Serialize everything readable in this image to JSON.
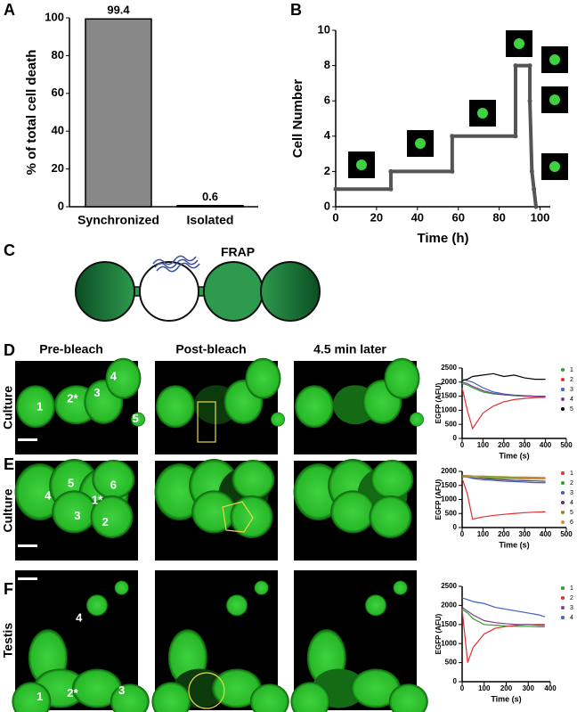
{
  "panels": {
    "letters": [
      "A",
      "B",
      "C",
      "D",
      "E",
      "F"
    ],
    "frap": "FRAP",
    "column_headers": [
      "Pre-bleach",
      "Post-bleach",
      "4.5 min later"
    ],
    "rows": [
      {
        "row_label": "Culture",
        "cells": [
          "1",
          "2*",
          "3",
          "4",
          "5"
        ]
      },
      {
        "row_label": "Culture",
        "cells": [
          "4",
          "5",
          "1*",
          "6",
          "3",
          "2"
        ]
      },
      {
        "row_label": "Testis",
        "cells": [
          "4",
          "1",
          "2*",
          "3"
        ]
      }
    ]
  },
  "chart_data": [
    {
      "type": "bar",
      "ylabel": "% of total cell death",
      "categories": [
        "Synchronized",
        "Isolated"
      ],
      "values": [
        99.4,
        0.6
      ],
      "color": "#888888",
      "ylim": [
        0,
        100
      ],
      "yticks": [
        0,
        20,
        40,
        60,
        80,
        100
      ]
    },
    {
      "type": "step",
      "xlabel": "Time (h)",
      "ylabel": "Cell Number",
      "x": [
        0,
        27,
        27,
        57,
        57,
        88,
        88,
        95,
        95,
        96,
        97,
        98
      ],
      "values": [
        1,
        1,
        2,
        2,
        4,
        4,
        8,
        8,
        6,
        2,
        1,
        0
      ],
      "color": "#555555",
      "xlim": [
        0,
        105
      ],
      "xticks": [
        0,
        20,
        40,
        60,
        80,
        100
      ],
      "ylim": [
        0,
        10
      ],
      "yticks": [
        0,
        2,
        4,
        6,
        8,
        10
      ]
    },
    {
      "type": "line",
      "xlabel": "Time (s)",
      "ylabel": "EGFP (AFU)",
      "x": [
        0,
        25,
        50,
        100,
        150,
        200,
        250,
        300,
        350,
        400
      ],
      "xlim": [
        0,
        500
      ],
      "xticks": [
        0,
        100,
        200,
        300,
        400,
        500
      ],
      "ylim": [
        0,
        2500
      ],
      "yticks": [
        0,
        500,
        1000,
        1500,
        2000,
        2500
      ],
      "series": [
        {
          "name": "1",
          "color": "#2ca02c",
          "values": [
            1950,
            1900,
            1800,
            1650,
            1580,
            1550,
            1520,
            1500,
            1490,
            1480
          ]
        },
        {
          "name": "2",
          "color": "#e03030",
          "values": [
            1800,
            1000,
            350,
            900,
            1150,
            1300,
            1380,
            1420,
            1450,
            1460
          ]
        },
        {
          "name": "3",
          "color": "#3f5fc0",
          "values": [
            2100,
            2050,
            2000,
            1800,
            1650,
            1580,
            1540,
            1520,
            1500,
            1500
          ]
        },
        {
          "name": "4",
          "color": "#7a3f8f",
          "values": [
            2000,
            1950,
            1850,
            1700,
            1600,
            1550,
            1530,
            1510,
            1500,
            1490
          ]
        },
        {
          "name": "5",
          "color": "#000000",
          "values": [
            2050,
            2100,
            2200,
            2250,
            2300,
            2200,
            2250,
            2150,
            2100,
            2100
          ]
        }
      ]
    },
    {
      "type": "line",
      "xlabel": "Time (s)",
      "ylabel": "EGFP (AFU)",
      "x": [
        0,
        25,
        50,
        100,
        150,
        200,
        250,
        300,
        350,
        400
      ],
      "xlim": [
        0,
        500
      ],
      "xticks": [
        0,
        100,
        200,
        300,
        400,
        500
      ],
      "ylim": [
        0,
        2000
      ],
      "yticks": [
        0,
        500,
        1000,
        1500,
        2000
      ],
      "series": [
        {
          "name": "1",
          "color": "#e03030",
          "values": [
            1750,
            1200,
            300,
            380,
            430,
            470,
            500,
            530,
            550,
            560
          ]
        },
        {
          "name": "2",
          "color": "#2ca02c",
          "values": [
            1800,
            1800,
            1780,
            1770,
            1760,
            1750,
            1750,
            1740,
            1740,
            1740
          ]
        },
        {
          "name": "3",
          "color": "#3f5fc0",
          "values": [
            1850,
            1800,
            1750,
            1700,
            1680,
            1650,
            1640,
            1620,
            1600,
            1600
          ]
        },
        {
          "name": "4",
          "color": "#5a2f6f",
          "values": [
            1850,
            1830,
            1800,
            1750,
            1720,
            1700,
            1680,
            1670,
            1660,
            1650
          ]
        },
        {
          "name": "5",
          "color": "#8a8a2a",
          "values": [
            1850,
            1850,
            1840,
            1830,
            1820,
            1810,
            1800,
            1800,
            1790,
            1780
          ]
        },
        {
          "name": "6",
          "color": "#e08a30",
          "values": [
            1800,
            1820,
            1800,
            1790,
            1790,
            1780,
            1780,
            1770,
            1770,
            1760
          ]
        }
      ]
    },
    {
      "type": "line",
      "xlabel": "Time (s)",
      "ylabel": "EGFP (AFU)",
      "x": [
        0,
        25,
        50,
        100,
        150,
        200,
        250,
        300,
        350,
        375
      ],
      "xlim": [
        0,
        400
      ],
      "xticks": [
        0,
        100,
        200,
        300,
        400
      ],
      "ylim": [
        0,
        2500
      ],
      "yticks": [
        0,
        500,
        1000,
        1500,
        2000,
        2500
      ],
      "series": [
        {
          "name": "1",
          "color": "#2ca02c",
          "values": [
            1900,
            1800,
            1650,
            1500,
            1480,
            1460,
            1450,
            1450,
            1440,
            1440
          ]
        },
        {
          "name": "2",
          "color": "#e03030",
          "values": [
            1900,
            500,
            900,
            1250,
            1400,
            1450,
            1480,
            1500,
            1500,
            1500
          ]
        },
        {
          "name": "3",
          "color": "#7a3f8f",
          "values": [
            1950,
            1850,
            1750,
            1600,
            1550,
            1520,
            1500,
            1500,
            1480,
            1480
          ]
        },
        {
          "name": "4",
          "color": "#3f5fc0",
          "values": [
            2200,
            2150,
            2100,
            2050,
            1950,
            1900,
            1850,
            1800,
            1750,
            1700
          ]
        }
      ]
    }
  ]
}
